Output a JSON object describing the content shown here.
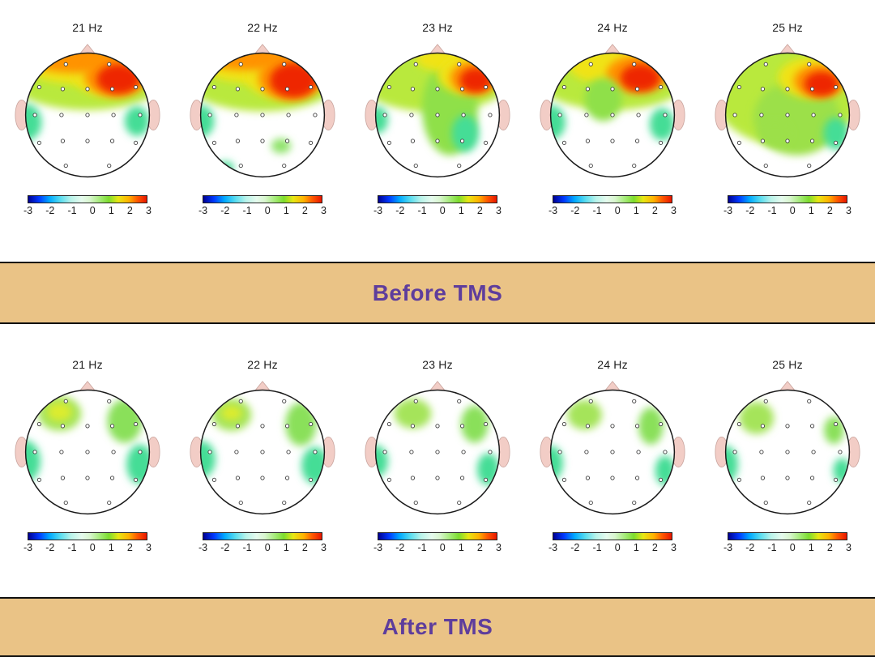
{
  "banners": {
    "before": "Before TMS",
    "after": "After TMS"
  },
  "style": {
    "banner_bg": "#eac386",
    "banner_text_color": "#5e3d9c",
    "skin_pink": "#f2cdc6",
    "head_outline": "#1a1a1a",
    "background": "#ffffff"
  },
  "colorbar": {
    "ticks": [
      "-3",
      "-2",
      "-1",
      "0",
      "1",
      "2",
      "3"
    ],
    "stops": [
      "#000092 0%",
      "#0038ff 9%",
      "#00aaff 18%",
      "#57dcf0 27%",
      "#b8f3ea 36%",
      "#e6fbee 45%",
      "#d9f6cf 52%",
      "#a8ec7e 60%",
      "#7ddd2e 68%",
      "#e8e714 76%",
      "#ffb100 85%",
      "#ff5a00 92%",
      "#e81600 100%"
    ]
  },
  "electrodes": [
    [
      -0.35,
      -0.82
    ],
    [
      0.35,
      -0.82
    ],
    [
      -0.78,
      -0.45
    ],
    [
      -0.4,
      -0.42
    ],
    [
      0,
      -0.42
    ],
    [
      0.4,
      -0.42
    ],
    [
      0.78,
      -0.45
    ],
    [
      -0.85,
      0
    ],
    [
      -0.42,
      0
    ],
    [
      0,
      0
    ],
    [
      0.42,
      0
    ],
    [
      0.85,
      0
    ],
    [
      -0.78,
      0.45
    ],
    [
      -0.4,
      0.42
    ],
    [
      0,
      0.42
    ],
    [
      0.4,
      0.42
    ],
    [
      0.78,
      0.45
    ],
    [
      -0.35,
      0.82
    ],
    [
      0.35,
      0.82
    ]
  ],
  "rows": [
    {
      "id": "before",
      "condition": "Before TMS",
      "panels": [
        {
          "title": "21 Hz",
          "blobs": [
            {
              "x": 0,
              "y": -0.58,
              "rx": 1.25,
              "ry": 0.5,
              "c": "#b9e93e"
            },
            {
              "x": -0.15,
              "y": -0.8,
              "rx": 0.85,
              "ry": 0.3,
              "c": "#f0e312"
            },
            {
              "x": 0.35,
              "y": -0.68,
              "rx": 0.62,
              "ry": 0.38,
              "c": "#f0e312"
            },
            {
              "x": -0.2,
              "y": -0.9,
              "rx": 0.75,
              "ry": 0.22,
              "c": "#ff9300"
            },
            {
              "x": 0.45,
              "y": -0.62,
              "rx": 0.5,
              "ry": 0.32,
              "c": "#ff9300"
            },
            {
              "x": 0.5,
              "y": -0.58,
              "rx": 0.35,
              "ry": 0.24,
              "c": "#ee2600"
            },
            {
              "x": -1.0,
              "y": 0.12,
              "rx": 0.26,
              "ry": 0.3,
              "c": "#45dd96"
            },
            {
              "x": 0.8,
              "y": 0.1,
              "rx": 0.2,
              "ry": 0.24,
              "c": "#45dd96"
            }
          ]
        },
        {
          "title": "22 Hz",
          "blobs": [
            {
              "x": 0,
              "y": -0.58,
              "rx": 1.25,
              "ry": 0.52,
              "c": "#b9e93e"
            },
            {
              "x": -0.2,
              "y": -0.82,
              "rx": 0.8,
              "ry": 0.3,
              "c": "#f0e312"
            },
            {
              "x": 0.35,
              "y": -0.66,
              "rx": 0.65,
              "ry": 0.4,
              "c": "#f0e312"
            },
            {
              "x": -0.25,
              "y": -0.92,
              "rx": 0.7,
              "ry": 0.2,
              "c": "#ff9300"
            },
            {
              "x": 0.45,
              "y": -0.6,
              "rx": 0.52,
              "ry": 0.36,
              "c": "#ff9300"
            },
            {
              "x": 0.5,
              "y": -0.56,
              "rx": 0.38,
              "ry": 0.28,
              "c": "#ee2600"
            },
            {
              "x": -1.0,
              "y": 0.1,
              "rx": 0.22,
              "ry": 0.26,
              "c": "#45dd96"
            },
            {
              "x": 0.3,
              "y": 0.5,
              "rx": 0.16,
              "ry": 0.12,
              "c": "#8fe36a"
            },
            {
              "x": -0.6,
              "y": 0.85,
              "rx": 0.14,
              "ry": 0.1,
              "c": "#45dd96"
            }
          ]
        },
        {
          "title": "23 Hz",
          "blobs": [
            {
              "x": -0.05,
              "y": -0.55,
              "rx": 1.2,
              "ry": 0.5,
              "c": "#b9e93e"
            },
            {
              "x": 0.2,
              "y": -0.1,
              "rx": 0.45,
              "ry": 0.75,
              "c": "#8fe04a"
            },
            {
              "x": 0.15,
              "y": -0.9,
              "rx": 0.5,
              "ry": 0.2,
              "c": "#f0e312"
            },
            {
              "x": 0.5,
              "y": -0.65,
              "rx": 0.5,
              "ry": 0.32,
              "c": "#f0e312"
            },
            {
              "x": 0.58,
              "y": -0.6,
              "rx": 0.38,
              "ry": 0.26,
              "c": "#ff9300"
            },
            {
              "x": 0.62,
              "y": -0.56,
              "rx": 0.26,
              "ry": 0.2,
              "c": "#ee2600"
            },
            {
              "x": 0.45,
              "y": 0.3,
              "rx": 0.22,
              "ry": 0.3,
              "c": "#45dd96"
            },
            {
              "x": -0.98,
              "y": 0.08,
              "rx": 0.18,
              "ry": 0.22,
              "c": "#45dd96"
            }
          ]
        },
        {
          "title": "24 Hz",
          "blobs": [
            {
              "x": 0,
              "y": -0.58,
              "rx": 1.22,
              "ry": 0.5,
              "c": "#b9e93e"
            },
            {
              "x": 0.1,
              "y": -0.78,
              "rx": 0.8,
              "ry": 0.3,
              "c": "#f0e312"
            },
            {
              "x": 0.4,
              "y": -0.66,
              "rx": 0.5,
              "ry": 0.3,
              "c": "#ff9300"
            },
            {
              "x": 0.45,
              "y": -0.6,
              "rx": 0.32,
              "ry": 0.22,
              "c": "#ee2600"
            },
            {
              "x": -0.15,
              "y": -0.25,
              "rx": 0.3,
              "ry": 0.35,
              "c": "#8fe04a"
            },
            {
              "x": -1.0,
              "y": 0.12,
              "rx": 0.24,
              "ry": 0.28,
              "c": "#45dd96"
            },
            {
              "x": 0.8,
              "y": 0.15,
              "rx": 0.2,
              "ry": 0.26,
              "c": "#45dd96"
            }
          ]
        },
        {
          "title": "25 Hz",
          "blobs": [
            {
              "x": 0,
              "y": -0.35,
              "rx": 1.2,
              "ry": 0.85,
              "c": "#b9e93e"
            },
            {
              "x": 0.15,
              "y": 0.05,
              "rx": 0.7,
              "ry": 0.6,
              "c": "#9ce04a"
            },
            {
              "x": 0.4,
              "y": -0.6,
              "rx": 0.55,
              "ry": 0.33,
              "c": "#f0e312"
            },
            {
              "x": 0.5,
              "y": -0.55,
              "rx": 0.4,
              "ry": 0.26,
              "c": "#ff9300"
            },
            {
              "x": 0.55,
              "y": -0.5,
              "rx": 0.28,
              "ry": 0.2,
              "c": "#ee2600"
            },
            {
              "x": 0.78,
              "y": 0.3,
              "rx": 0.2,
              "ry": 0.26,
              "c": "#45dd96"
            },
            {
              "x": -0.2,
              "y": 0.3,
              "rx": 0.25,
              "ry": 0.2,
              "c": "#9ce04a"
            }
          ]
        }
      ]
    },
    {
      "id": "after",
      "condition": "After TMS",
      "panels": [
        {
          "title": "21 Hz",
          "blobs": [
            {
              "x": -0.45,
              "y": -0.62,
              "rx": 0.35,
              "ry": 0.28,
              "c": "#a5e45a"
            },
            {
              "x": -0.45,
              "y": -0.65,
              "rx": 0.2,
              "ry": 0.15,
              "c": "#dcec2e"
            },
            {
              "x": 0.6,
              "y": -0.5,
              "rx": 0.28,
              "ry": 0.35,
              "c": "#8ae05a"
            },
            {
              "x": -1.02,
              "y": 0.15,
              "rx": 0.26,
              "ry": 0.34,
              "c": "#45dd96"
            },
            {
              "x": 0.85,
              "y": 0.2,
              "rx": 0.22,
              "ry": 0.32,
              "c": "#45dd96"
            }
          ]
        },
        {
          "title": "22 Hz",
          "blobs": [
            {
              "x": -0.5,
              "y": -0.6,
              "rx": 0.32,
              "ry": 0.26,
              "c": "#a5e45a"
            },
            {
              "x": -0.5,
              "y": -0.63,
              "rx": 0.17,
              "ry": 0.12,
              "c": "#dcec2e"
            },
            {
              "x": 0.62,
              "y": -0.45,
              "rx": 0.25,
              "ry": 0.35,
              "c": "#8ae05a"
            },
            {
              "x": -1.0,
              "y": 0.12,
              "rx": 0.24,
              "ry": 0.3,
              "c": "#45dd96"
            },
            {
              "x": 0.85,
              "y": 0.22,
              "rx": 0.22,
              "ry": 0.3,
              "c": "#45dd96"
            }
          ]
        },
        {
          "title": "23 Hz",
          "blobs": [
            {
              "x": -0.4,
              "y": -0.62,
              "rx": 0.3,
              "ry": 0.24,
              "c": "#a5e45a"
            },
            {
              "x": 0.6,
              "y": -0.45,
              "rx": 0.22,
              "ry": 0.3,
              "c": "#8ae05a"
            },
            {
              "x": -1.0,
              "y": 0.15,
              "rx": 0.2,
              "ry": 0.26,
              "c": "#45dd96"
            },
            {
              "x": 0.82,
              "y": 0.28,
              "rx": 0.18,
              "ry": 0.26,
              "c": "#45dd96"
            }
          ]
        },
        {
          "title": "24 Hz",
          "blobs": [
            {
              "x": -0.45,
              "y": -0.6,
              "rx": 0.28,
              "ry": 0.24,
              "c": "#a5e45a"
            },
            {
              "x": 0.62,
              "y": -0.42,
              "rx": 0.2,
              "ry": 0.3,
              "c": "#8ae05a"
            },
            {
              "x": -1.0,
              "y": 0.18,
              "rx": 0.2,
              "ry": 0.28,
              "c": "#45dd96"
            },
            {
              "x": 0.85,
              "y": 0.3,
              "rx": 0.16,
              "ry": 0.24,
              "c": "#45dd96"
            }
          ]
        },
        {
          "title": "25 Hz",
          "blobs": [
            {
              "x": -0.5,
              "y": -0.55,
              "rx": 0.28,
              "ry": 0.26,
              "c": "#a5e45a"
            },
            {
              "x": -1.0,
              "y": 0.2,
              "rx": 0.2,
              "ry": 0.3,
              "c": "#45dd96"
            },
            {
              "x": 0.75,
              "y": -0.35,
              "rx": 0.16,
              "ry": 0.22,
              "c": "#8ae05a"
            },
            {
              "x": 0.88,
              "y": 0.3,
              "rx": 0.14,
              "ry": 0.2,
              "c": "#45dd96"
            }
          ]
        }
      ]
    }
  ],
  "chart_data": {
    "type": "heatmap",
    "chart_kind": "EEG scalp topographic map grid (2 conditions x 5 frequencies)",
    "grid": {
      "rows": 2,
      "cols": 5
    },
    "row_labels": [
      "Before TMS",
      "After TMS"
    ],
    "col_labels": [
      "21 Hz",
      "22 Hz",
      "23 Hz",
      "24 Hz",
      "25 Hz"
    ],
    "color_scale": {
      "min": -3,
      "max": 3,
      "ticks": [
        -3,
        -2,
        -1,
        0,
        1,
        2,
        3
      ],
      "palette": "jet-like: dark blue (-3) -> blue -> cyan -> near-white (0) -> green -> yellow -> orange -> red (+3)"
    },
    "panel_summaries": [
      {
        "condition": "Before TMS",
        "frequency": "21 Hz",
        "peak_value_est": 3,
        "pattern": "Red/orange maximum (~+3) over right frontal scalp with orange band along frontal rim; yellow-green band across mid-frontal; small ~+1 green patches at bilateral temporal rims; remainder near 0."
      },
      {
        "condition": "Before TMS",
        "frequency": "22 Hz",
        "peak_value_est": 3,
        "pattern": "Similar to 21 Hz with slightly larger right-frontal red focus; small green spot right centro-parietal; mint patch at left temporal rim and tiny patch bottom-left."
      },
      {
        "condition": "Before TMS",
        "frequency": "23 Hz",
        "peak_value_est": 3,
        "pattern": "Smaller right-frontal red focus; green (+1) tongue extends from frontal midline down toward centro-parietal area; mint (+1) patch right central and left temporal rim."
      },
      {
        "condition": "Before TMS",
        "frequency": "24 Hz",
        "peak_value_est": 3,
        "pattern": "Right-frontal red focus with yellow/orange surround; wavy green frontal band dipping at midline; mint patches at left and right temporal rims."
      },
      {
        "condition": "Before TMS",
        "frequency": "25 Hz",
        "peak_value_est": 3,
        "pattern": "Broad yellow-green (+1 to +2) over frontal and central regions; red focus right frontal; mint patch right posterior-temporal; only posterior-left near 0."
      },
      {
        "condition": "After TMS",
        "frequency": "21 Hz",
        "peak_value_est": 1,
        "pattern": "Scalp mostly near 0 (white); ~+1 green patch with yellow core left frontal; green patch right fronto-temporal; mint crescents at left ear and right posterior-temporal rims."
      },
      {
        "condition": "After TMS",
        "frequency": "22 Hz",
        "peak_value_est": 1,
        "pattern": "Near 0 overall with small +1 patches: left frontal (yellow core), right fronto-temporal, left ear rim, right posterior-temporal rim."
      },
      {
        "condition": "After TMS",
        "frequency": "23 Hz",
        "peak_value_est": 1,
        "pattern": "Near 0 overall; small green patches left frontal and right fronto-temporal; mint crescents at left ear and right posterior rim."
      },
      {
        "condition": "After TMS",
        "frequency": "24 Hz",
        "peak_value_est": 1,
        "pattern": "Near 0 overall; faint green patches left frontal and right fronto-temporal; mint crescents at left ear and right posterior rim."
      },
      {
        "condition": "After TMS",
        "frequency": "25 Hz",
        "peak_value_est": 1,
        "pattern": "Near 0 overall; small green patch left frontal; mint crescent at left ear; tiny green spots at right rim."
      }
    ]
  }
}
